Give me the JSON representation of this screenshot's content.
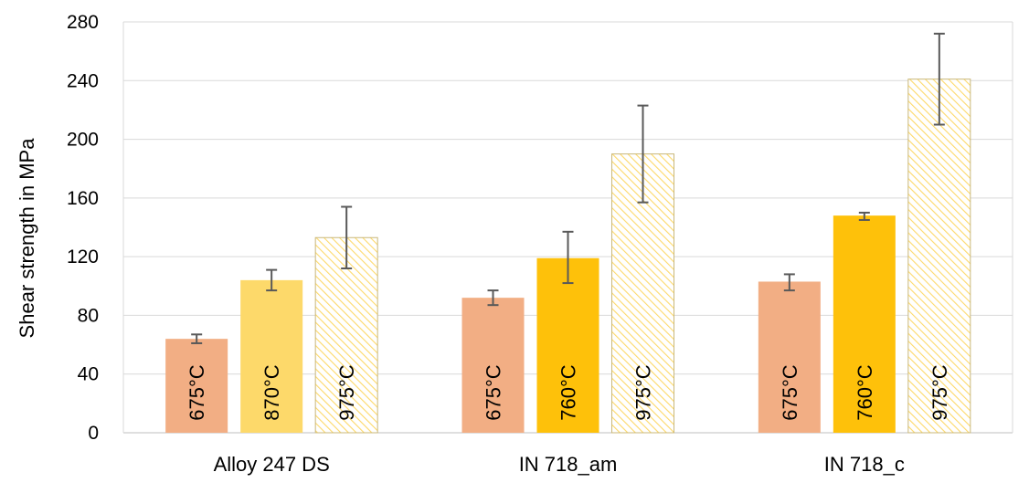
{
  "chart_data": {
    "type": "bar",
    "title": "",
    "xlabel": "",
    "ylabel": "Shear strength in MPa",
    "ylim": [
      0,
      280
    ],
    "yticks": [
      0,
      40,
      80,
      120,
      160,
      200,
      240,
      280
    ],
    "grid": true,
    "groups": [
      {
        "name": "Alloy 247 DS",
        "bars": [
          {
            "label": "675°C",
            "value": 64,
            "error_low": 61,
            "error_high": 67,
            "style": "salmon"
          },
          {
            "label": "870°C",
            "value": 104,
            "error_low": 97,
            "error_high": 111,
            "style": "lightyellow"
          },
          {
            "label": "975°C",
            "value": 133,
            "error_low": 112,
            "error_high": 154,
            "style": "hatched"
          }
        ]
      },
      {
        "name": "IN 718_am",
        "bars": [
          {
            "label": "675°C",
            "value": 92,
            "error_low": 87,
            "error_high": 97,
            "style": "salmon"
          },
          {
            "label": "760°C",
            "value": 119,
            "error_low": 102,
            "error_high": 137,
            "style": "gold"
          },
          {
            "label": "975°C",
            "value": 190,
            "error_low": 157,
            "error_high": 223,
            "style": "hatched"
          }
        ]
      },
      {
        "name": "IN 718_c",
        "bars": [
          {
            "label": "675°C",
            "value": 103,
            "error_low": 97,
            "error_high": 108,
            "style": "salmon"
          },
          {
            "label": "760°C",
            "value": 148,
            "error_low": 145,
            "error_high": 150,
            "style": "gold"
          },
          {
            "label": "975°C",
            "value": 241,
            "error_low": 210,
            "error_high": 272,
            "style": "hatched"
          }
        ]
      }
    ],
    "colors": {
      "salmon": "#f2ae84",
      "lightyellow": "#fdd96a",
      "gold": "#fec10a",
      "hatch": "#fdd96a",
      "hatch_border": "#c9b779",
      "error_bar": "#595959",
      "grid": "#d9d9d9",
      "axis": "#bfbfbf"
    }
  }
}
